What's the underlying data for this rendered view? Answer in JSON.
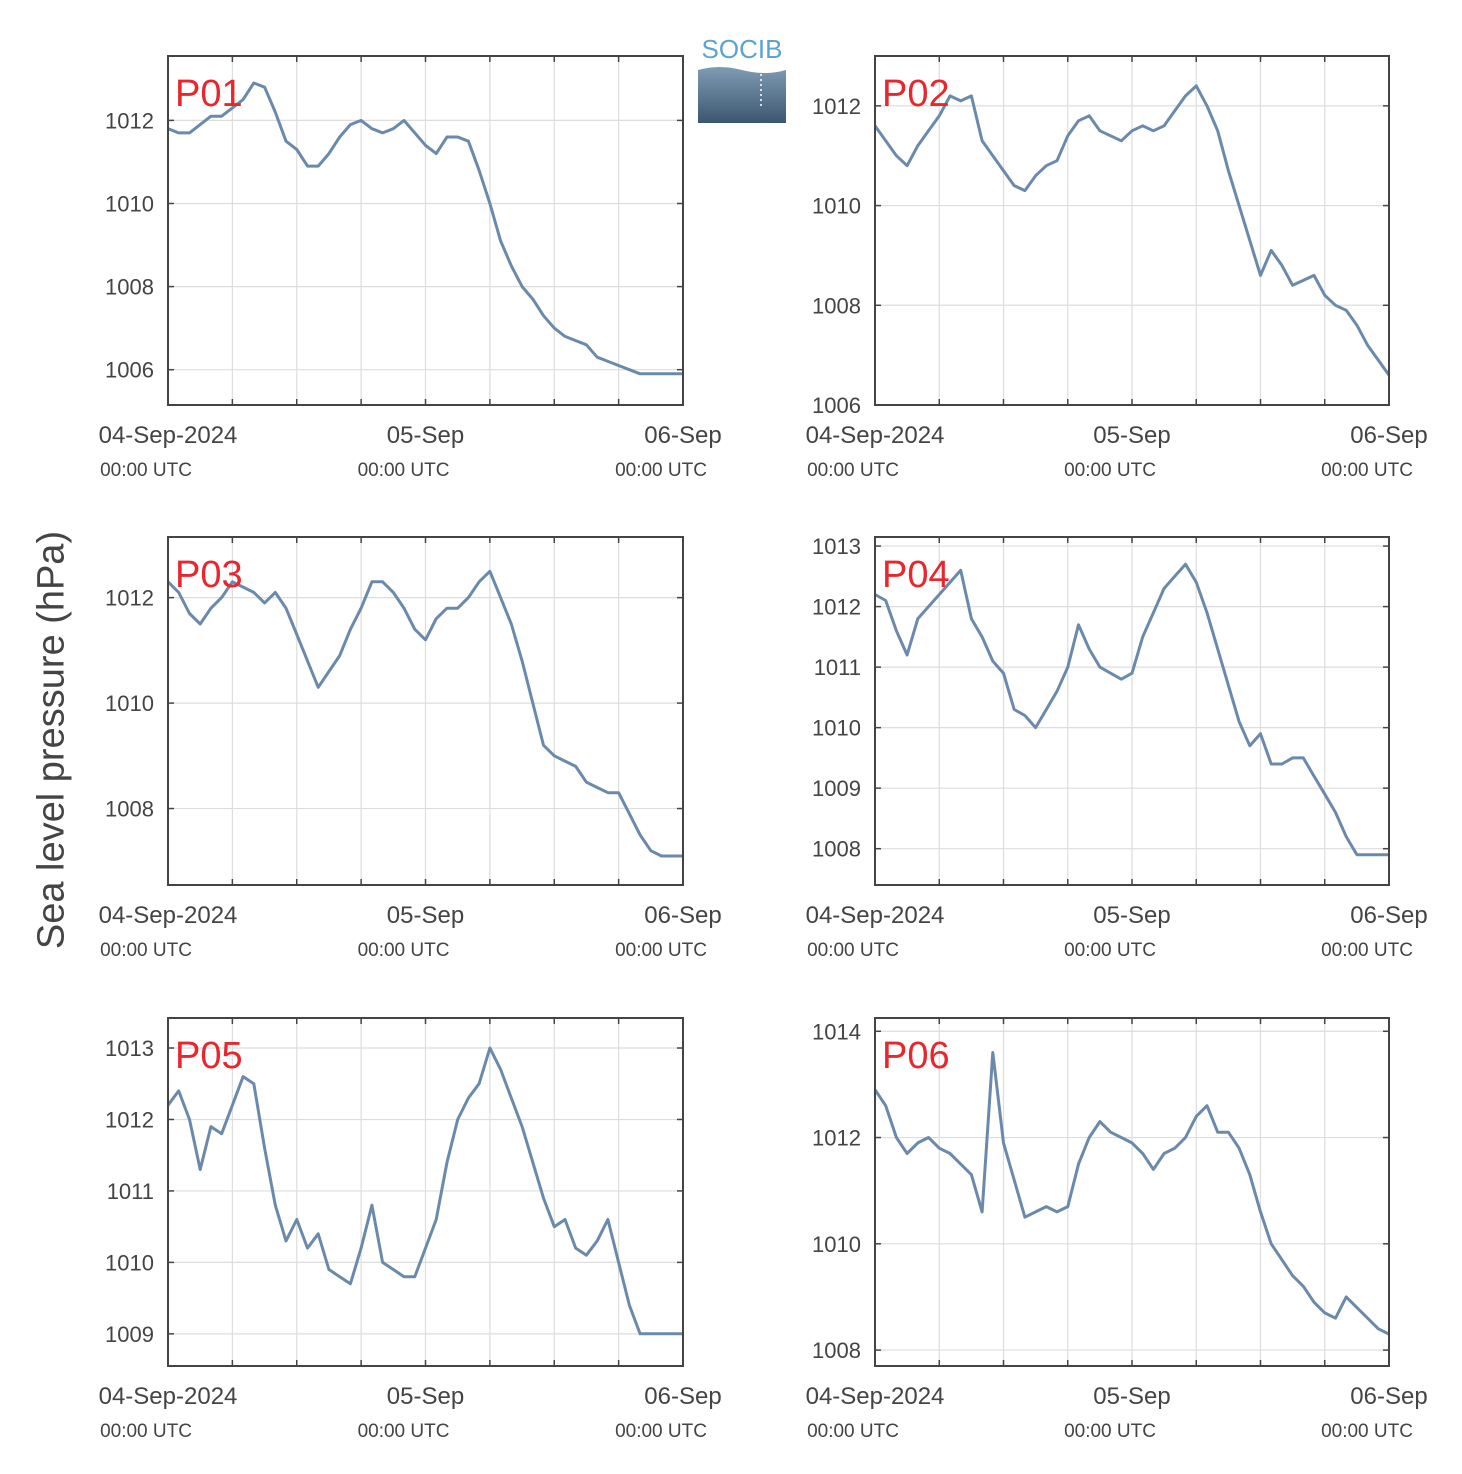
{
  "logo": {
    "text": "SOCIB",
    "colors": {
      "text": "#5ba3d0",
      "top": "#7f9cb4",
      "bottom": "#3d5670"
    }
  },
  "ylabel": "Sea level pressure (hPa)",
  "colors": {
    "line": "#6b8aab",
    "label": "#e8262d",
    "axis": "#444444",
    "grid": "#dddddd",
    "tick_text": "#444444"
  },
  "chart_data": [
    {
      "type": "line",
      "label": "P01",
      "x_ticks": [
        {
          "major": "04-Sep-2024",
          "minor": "00:00 UTC"
        },
        {
          "major": "05-Sep",
          "minor": "00:00 UTC"
        },
        {
          "major": "06-Sep",
          "minor": "00:00 UTC"
        }
      ],
      "xlim": [
        0,
        48
      ],
      "ylim": [
        1005.15,
        1013.55
      ],
      "yticks": [
        1006,
        1008,
        1010,
        1012
      ],
      "x": [
        0,
        1,
        2,
        3,
        4,
        5,
        6,
        7,
        8,
        9,
        10,
        11,
        12,
        13,
        14,
        15,
        16,
        17,
        18,
        19,
        20,
        21,
        22,
        23,
        24,
        25,
        26,
        27,
        28,
        29,
        30,
        31,
        32,
        33,
        34,
        35,
        36,
        37,
        38,
        39,
        40,
        41,
        42,
        43,
        44,
        45,
        46,
        47,
        48
      ],
      "y": [
        1011.8,
        1011.7,
        1011.7,
        1011.9,
        1012.1,
        1012.1,
        1012.3,
        1012.5,
        1012.9,
        1012.8,
        1012.2,
        1011.5,
        1011.3,
        1010.9,
        1010.9,
        1011.2,
        1011.6,
        1011.9,
        1012.0,
        1011.8,
        1011.7,
        1011.8,
        1012.0,
        1011.7,
        1011.4,
        1011.2,
        1011.6,
        1011.6,
        1011.5,
        1010.8,
        1010.0,
        1009.1,
        1008.5,
        1008.0,
        1007.7,
        1007.3,
        1007.0,
        1006.8,
        1006.7,
        1006.6,
        1006.3,
        1006.2,
        1006.1,
        1006.0,
        1005.9,
        1005.9,
        1005.9,
        1005.9,
        1005.9
      ]
    },
    {
      "type": "line",
      "label": "P02",
      "x_ticks": [
        {
          "major": "04-Sep-2024",
          "minor": "00:00 UTC"
        },
        {
          "major": "05-Sep",
          "minor": "00:00 UTC"
        },
        {
          "major": "06-Sep",
          "minor": "00:00 UTC"
        }
      ],
      "xlim": [
        0,
        48
      ],
      "ylim": [
        1006,
        1013.0
      ],
      "yticks": [
        1006,
        1008,
        1010,
        1012
      ],
      "x": [
        0,
        1,
        2,
        3,
        4,
        5,
        6,
        7,
        8,
        9,
        10,
        11,
        12,
        13,
        14,
        15,
        16,
        17,
        18,
        19,
        20,
        21,
        22,
        23,
        24,
        25,
        26,
        27,
        28,
        29,
        30,
        31,
        32,
        33,
        34,
        35,
        36,
        37,
        38,
        39,
        40,
        41,
        42,
        43,
        44,
        45,
        46,
        47,
        48
      ],
      "y": [
        1011.6,
        1011.3,
        1011.0,
        1010.8,
        1011.2,
        1011.5,
        1011.8,
        1012.2,
        1012.1,
        1012.2,
        1011.3,
        1011.0,
        1010.7,
        1010.4,
        1010.3,
        1010.6,
        1010.8,
        1010.9,
        1011.4,
        1011.7,
        1011.8,
        1011.5,
        1011.4,
        1011.3,
        1011.5,
        1011.6,
        1011.5,
        1011.6,
        1011.9,
        1012.2,
        1012.4,
        1012.0,
        1011.5,
        1010.7,
        1010.0,
        1009.3,
        1008.6,
        1009.1,
        1008.8,
        1008.4,
        1008.5,
        1008.6,
        1008.2,
        1008.0,
        1007.9,
        1007.6,
        1007.2,
        1006.9,
        1006.6
      ]
    },
    {
      "type": "line",
      "label": "P03",
      "x_ticks": [
        {
          "major": "04-Sep-2024",
          "minor": "00:00 UTC"
        },
        {
          "major": "05-Sep",
          "minor": "00:00 UTC"
        },
        {
          "major": "06-Sep",
          "minor": "00:00 UTC"
        }
      ],
      "xlim": [
        0,
        48
      ],
      "ylim": [
        1006.55,
        1013.15
      ],
      "yticks": [
        1008,
        1010,
        1012
      ],
      "x": [
        0,
        1,
        2,
        3,
        4,
        5,
        6,
        7,
        8,
        9,
        10,
        11,
        12,
        13,
        14,
        15,
        16,
        17,
        18,
        19,
        20,
        21,
        22,
        23,
        24,
        25,
        26,
        27,
        28,
        29,
        30,
        31,
        32,
        33,
        34,
        35,
        36,
        37,
        38,
        39,
        40,
        41,
        42,
        43,
        44,
        45,
        46,
        47,
        48
      ],
      "y": [
        1012.3,
        1012.1,
        1011.7,
        1011.5,
        1011.8,
        1012.0,
        1012.3,
        1012.2,
        1012.1,
        1011.9,
        1012.1,
        1011.8,
        1011.3,
        1010.8,
        1010.3,
        1010.6,
        1010.9,
        1011.4,
        1011.8,
        1012.3,
        1012.3,
        1012.1,
        1011.8,
        1011.4,
        1011.2,
        1011.6,
        1011.8,
        1011.8,
        1012.0,
        1012.3,
        1012.5,
        1012.0,
        1011.5,
        1010.8,
        1010.0,
        1009.2,
        1009.0,
        1008.9,
        1008.8,
        1008.5,
        1008.4,
        1008.3,
        1008.3,
        1007.9,
        1007.5,
        1007.2,
        1007.1,
        1007.1,
        1007.1
      ]
    },
    {
      "type": "line",
      "label": "P04",
      "x_ticks": [
        {
          "major": "04-Sep-2024",
          "minor": "00:00 UTC"
        },
        {
          "major": "05-Sep",
          "minor": "00:00 UTC"
        },
        {
          "major": "06-Sep",
          "minor": "00:00 UTC"
        }
      ],
      "xlim": [
        0,
        48
      ],
      "ylim": [
        1007.4,
        1013.15
      ],
      "yticks": [
        1008,
        1009,
        1010,
        1011,
        1012,
        1013
      ],
      "x": [
        0,
        1,
        2,
        3,
        4,
        5,
        6,
        7,
        8,
        9,
        10,
        11,
        12,
        13,
        14,
        15,
        16,
        17,
        18,
        19,
        20,
        21,
        22,
        23,
        24,
        25,
        26,
        27,
        28,
        29,
        30,
        31,
        32,
        33,
        34,
        35,
        36,
        37,
        38,
        39,
        40,
        41,
        42,
        43,
        44,
        45,
        46,
        47,
        48
      ],
      "y": [
        1012.2,
        1012.1,
        1011.6,
        1011.2,
        1011.8,
        1012.0,
        1012.2,
        1012.4,
        1012.6,
        1011.8,
        1011.5,
        1011.1,
        1010.9,
        1010.3,
        1010.2,
        1010.0,
        1010.3,
        1010.6,
        1011.0,
        1011.7,
        1011.3,
        1011.0,
        1010.9,
        1010.8,
        1010.9,
        1011.5,
        1011.9,
        1012.3,
        1012.5,
        1012.7,
        1012.4,
        1011.9,
        1011.3,
        1010.7,
        1010.1,
        1009.7,
        1009.9,
        1009.4,
        1009.4,
        1009.5,
        1009.5,
        1009.2,
        1008.9,
        1008.6,
        1008.2,
        1007.9,
        1007.9,
        1007.9,
        1007.9
      ]
    },
    {
      "type": "line",
      "label": "P05",
      "x_ticks": [
        {
          "major": "04-Sep-2024",
          "minor": "00:00 UTC"
        },
        {
          "major": "05-Sep",
          "minor": "00:00 UTC"
        },
        {
          "major": "06-Sep",
          "minor": "00:00 UTC"
        }
      ],
      "xlim": [
        0,
        48
      ],
      "ylim": [
        1008.55,
        1013.42
      ],
      "yticks": [
        1009,
        1010,
        1011,
        1012,
        1013
      ],
      "x": [
        0,
        1,
        2,
        3,
        4,
        5,
        6,
        7,
        8,
        9,
        10,
        11,
        12,
        13,
        14,
        15,
        16,
        17,
        18,
        19,
        20,
        21,
        22,
        23,
        24,
        25,
        26,
        27,
        28,
        29,
        30,
        31,
        32,
        33,
        34,
        35,
        36,
        37,
        38,
        39,
        40,
        41,
        42,
        43,
        44,
        45,
        46,
        47,
        48
      ],
      "y": [
        1012.2,
        1012.4,
        1012.0,
        1011.3,
        1011.9,
        1011.8,
        1012.2,
        1012.6,
        1012.5,
        1011.6,
        1010.8,
        1010.3,
        1010.6,
        1010.2,
        1010.4,
        1009.9,
        1009.8,
        1009.7,
        1010.2,
        1010.8,
        1010.0,
        1009.9,
        1009.8,
        1009.8,
        1010.2,
        1010.6,
        1011.4,
        1012.0,
        1012.3,
        1012.5,
        1013.0,
        1012.7,
        1012.3,
        1011.9,
        1011.4,
        1010.9,
        1010.5,
        1010.6,
        1010.2,
        1010.1,
        1010.3,
        1010.6,
        1010.0,
        1009.4,
        1009.0,
        1009.0,
        1009.0,
        1009.0,
        1009.0
      ]
    },
    {
      "type": "line",
      "label": "P06",
      "x_ticks": [
        {
          "major": "04-Sep-2024",
          "minor": "00:00 UTC"
        },
        {
          "major": "05-Sep",
          "minor": "00:00 UTC"
        },
        {
          "major": "06-Sep",
          "minor": "00:00 UTC"
        }
      ],
      "xlim": [
        0,
        48
      ],
      "ylim": [
        1007.7,
        1014.25
      ],
      "yticks": [
        1008,
        1010,
        1012,
        1014
      ],
      "x": [
        0,
        1,
        2,
        3,
        4,
        5,
        6,
        7,
        8,
        9,
        10,
        11,
        12,
        13,
        14,
        15,
        16,
        17,
        18,
        19,
        20,
        21,
        22,
        23,
        24,
        25,
        26,
        27,
        28,
        29,
        30,
        31,
        32,
        33,
        34,
        35,
        36,
        37,
        38,
        39,
        40,
        41,
        42,
        43,
        44,
        45,
        46,
        47,
        48
      ],
      "y": [
        1012.9,
        1012.6,
        1012.0,
        1011.7,
        1011.9,
        1012.0,
        1011.8,
        1011.7,
        1011.5,
        1011.3,
        1010.6,
        1013.6,
        1011.9,
        1011.2,
        1010.5,
        1010.6,
        1010.7,
        1010.6,
        1010.7,
        1011.5,
        1012.0,
        1012.3,
        1012.1,
        1012.0,
        1011.9,
        1011.7,
        1011.4,
        1011.7,
        1011.8,
        1012.0,
        1012.4,
        1012.6,
        1012.1,
        1012.1,
        1011.8,
        1011.3,
        1010.6,
        1010.0,
        1009.7,
        1009.4,
        1009.2,
        1008.9,
        1008.7,
        1008.6,
        1009.0,
        1008.8,
        1008.6,
        1008.4,
        1008.3
      ]
    }
  ]
}
